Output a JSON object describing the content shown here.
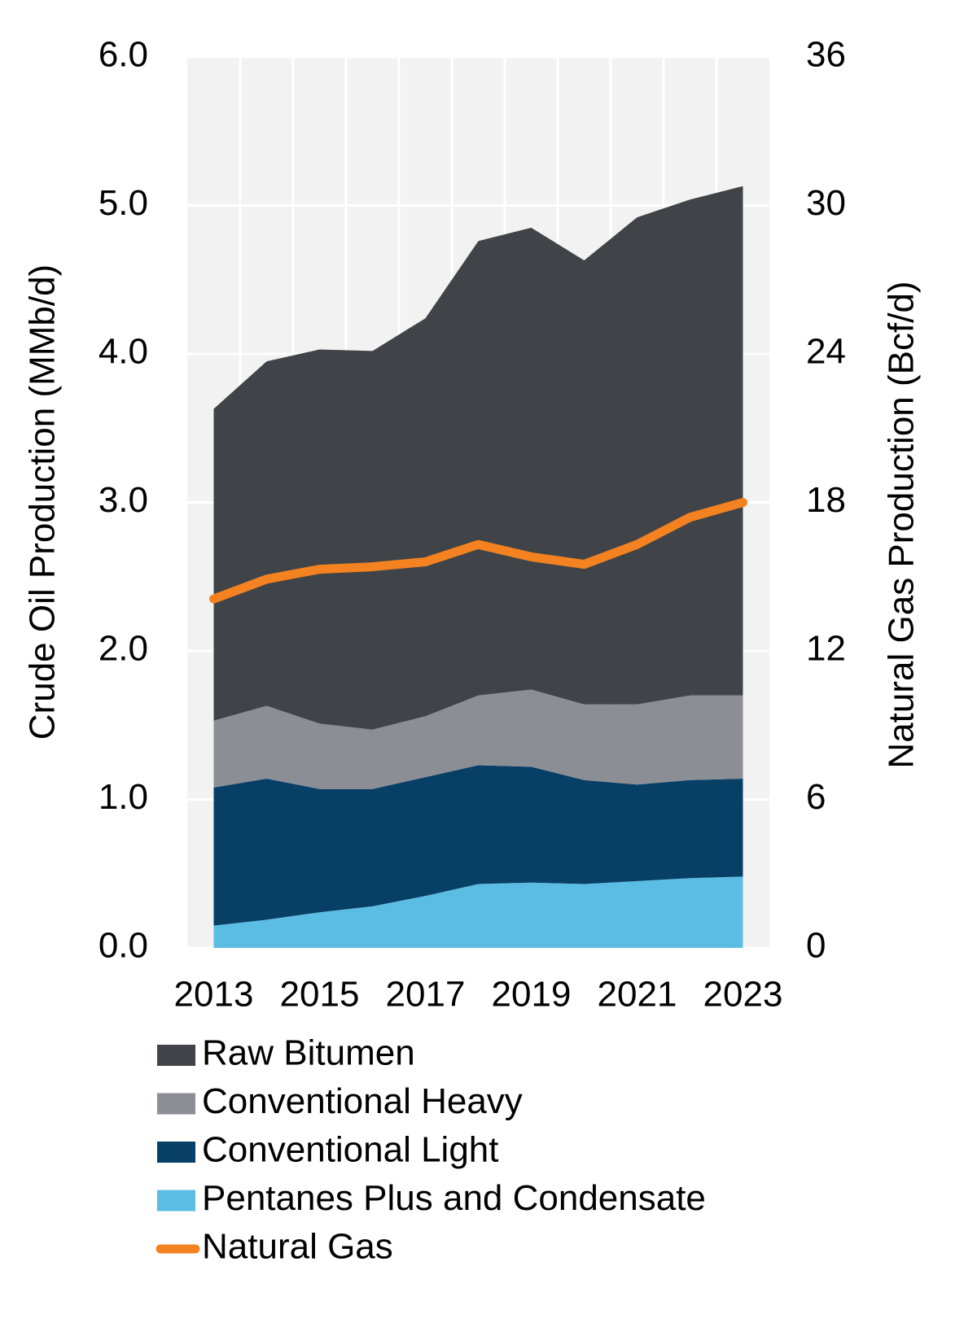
{
  "chart_data": {
    "type": "stacked-area",
    "y_label": "Crude Oil Production (MMb/d)",
    "y2_label": "Natural Gas Production (Bcf/d)",
    "categories": [
      "2013",
      null,
      "2015",
      null,
      "2017",
      null,
      "2019",
      null,
      "2021",
      null,
      "2023"
    ],
    "series": [
      {
        "name": "Raw Bitumen",
        "color": "#404448",
        "values": [
          2.1,
          2.32,
          2.52,
          2.55,
          2.68,
          3.06,
          3.11,
          2.99,
          3.28,
          3.34,
          3.43
        ]
      },
      {
        "name": "Conventional Heavy",
        "color": "#8c8e96",
        "values": [
          0.45,
          0.49,
          0.44,
          0.4,
          0.41,
          0.47,
          0.52,
          0.51,
          0.54,
          0.57,
          0.56
        ]
      },
      {
        "name": "Conventional Light",
        "color": "#083f66",
        "values": [
          0.93,
          0.95,
          0.83,
          0.79,
          0.8,
          0.8,
          0.78,
          0.7,
          0.65,
          0.66,
          0.66
        ]
      },
      {
        "name": "Pentanes Plus and Condensate",
        "color": "#5bbde4",
        "values": [
          0.15,
          0.19,
          0.24,
          0.28,
          0.35,
          0.43,
          0.44,
          0.43,
          0.45,
          0.47,
          0.48
        ]
      },
      {
        "name": "Natural Gas",
        "color": "#f58220",
        "type": "line",
        "axis": "y2",
        "values": [
          14.1,
          14.9,
          15.3,
          15.4,
          15.6,
          16.3,
          15.8,
          15.5,
          16.3,
          17.4,
          18.0
        ]
      }
    ],
    "ylim": [
      0,
      6
    ],
    "yticks": [
      {
        "value": 0,
        "label": "0.0"
      },
      {
        "value": 1,
        "label": "1.0"
      },
      {
        "value": 2,
        "label": "2.0"
      },
      {
        "value": 3,
        "label": "3.0"
      },
      {
        "value": 4,
        "label": "4.0"
      },
      {
        "value": 5,
        "label": "5.0"
      },
      {
        "value": 6,
        "label": "6.0"
      }
    ],
    "y2lim": [
      0,
      36
    ],
    "y2ticks": [
      0,
      6,
      12,
      18,
      24,
      30,
      36
    ],
    "grid": true,
    "legend": "bottom"
  }
}
